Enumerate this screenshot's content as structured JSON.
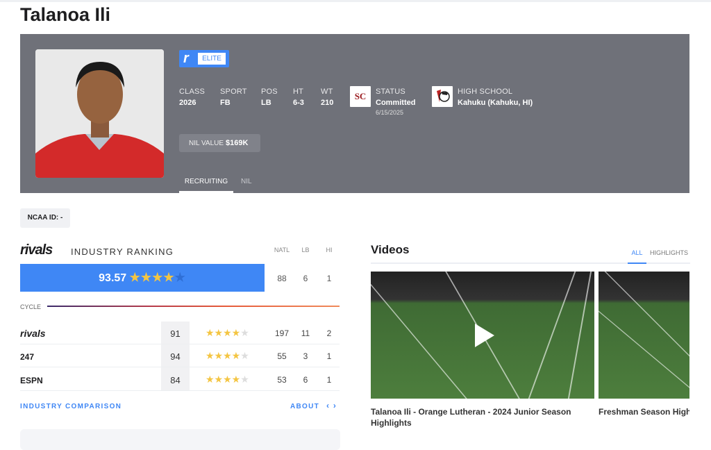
{
  "player": {
    "name": "Talanoa Ili"
  },
  "badge": {
    "logo": "r",
    "label": "ELITE"
  },
  "stats": [
    {
      "label": "CLASS",
      "value": "2026"
    },
    {
      "label": "SPORT",
      "value": "FB"
    },
    {
      "label": "POS",
      "value": "LB"
    },
    {
      "label": "HT",
      "value": "6-3"
    },
    {
      "label": "WT",
      "value": "210"
    }
  ],
  "status": {
    "label": "STATUS",
    "value": "Committed",
    "date": "6/15/2025",
    "logo_text": "SC"
  },
  "high_school": {
    "label": "HIGH SCHOOL",
    "value": "Kahuku (Kahuku, HI)"
  },
  "nil": {
    "label": "NIL VALUE",
    "value": "$169K"
  },
  "tabs": [
    {
      "label": "RECRUITING",
      "active": true
    },
    {
      "label": "NIL",
      "active": false
    }
  ],
  "ncaa": {
    "label": "NCAA ID:  -"
  },
  "ranking": {
    "brand": "rivals",
    "title": "INDUSTRY RANKING",
    "columns": [
      "NATL",
      "LB",
      "HI"
    ],
    "composite": {
      "score": "93.57",
      "stars": 4,
      "natl": "88",
      "pos": "6",
      "state": "1"
    },
    "cycle_label": "CYCLE",
    "rows": [
      {
        "source": "rivals",
        "score": "91",
        "stars": 4,
        "natl": "197",
        "pos": "11",
        "state": "2"
      },
      {
        "source": "247",
        "score": "94",
        "stars": 4,
        "natl": "55",
        "pos": "3",
        "state": "1"
      },
      {
        "source": "ESPN",
        "score": "84",
        "stars": 4,
        "natl": "53",
        "pos": "6",
        "state": "1"
      }
    ],
    "industry_comparison": "INDUSTRY COMPARISON",
    "about": "ABOUT",
    "nav_icon": "‹ ›"
  },
  "videos": {
    "title": "Videos",
    "tabs": [
      {
        "label": "ALL",
        "active": true
      },
      {
        "label": "HIGHLIGHTS",
        "active": false
      }
    ],
    "items": [
      {
        "title": "Talanoa Ili - Orange Lutheran - 2024 Junior Season Highlights"
      },
      {
        "title": "Freshman Season Highlights"
      }
    ]
  },
  "colors": {
    "accent": "#3f87f5",
    "hero_bg": "#6f7179",
    "star": "#f4c542"
  }
}
